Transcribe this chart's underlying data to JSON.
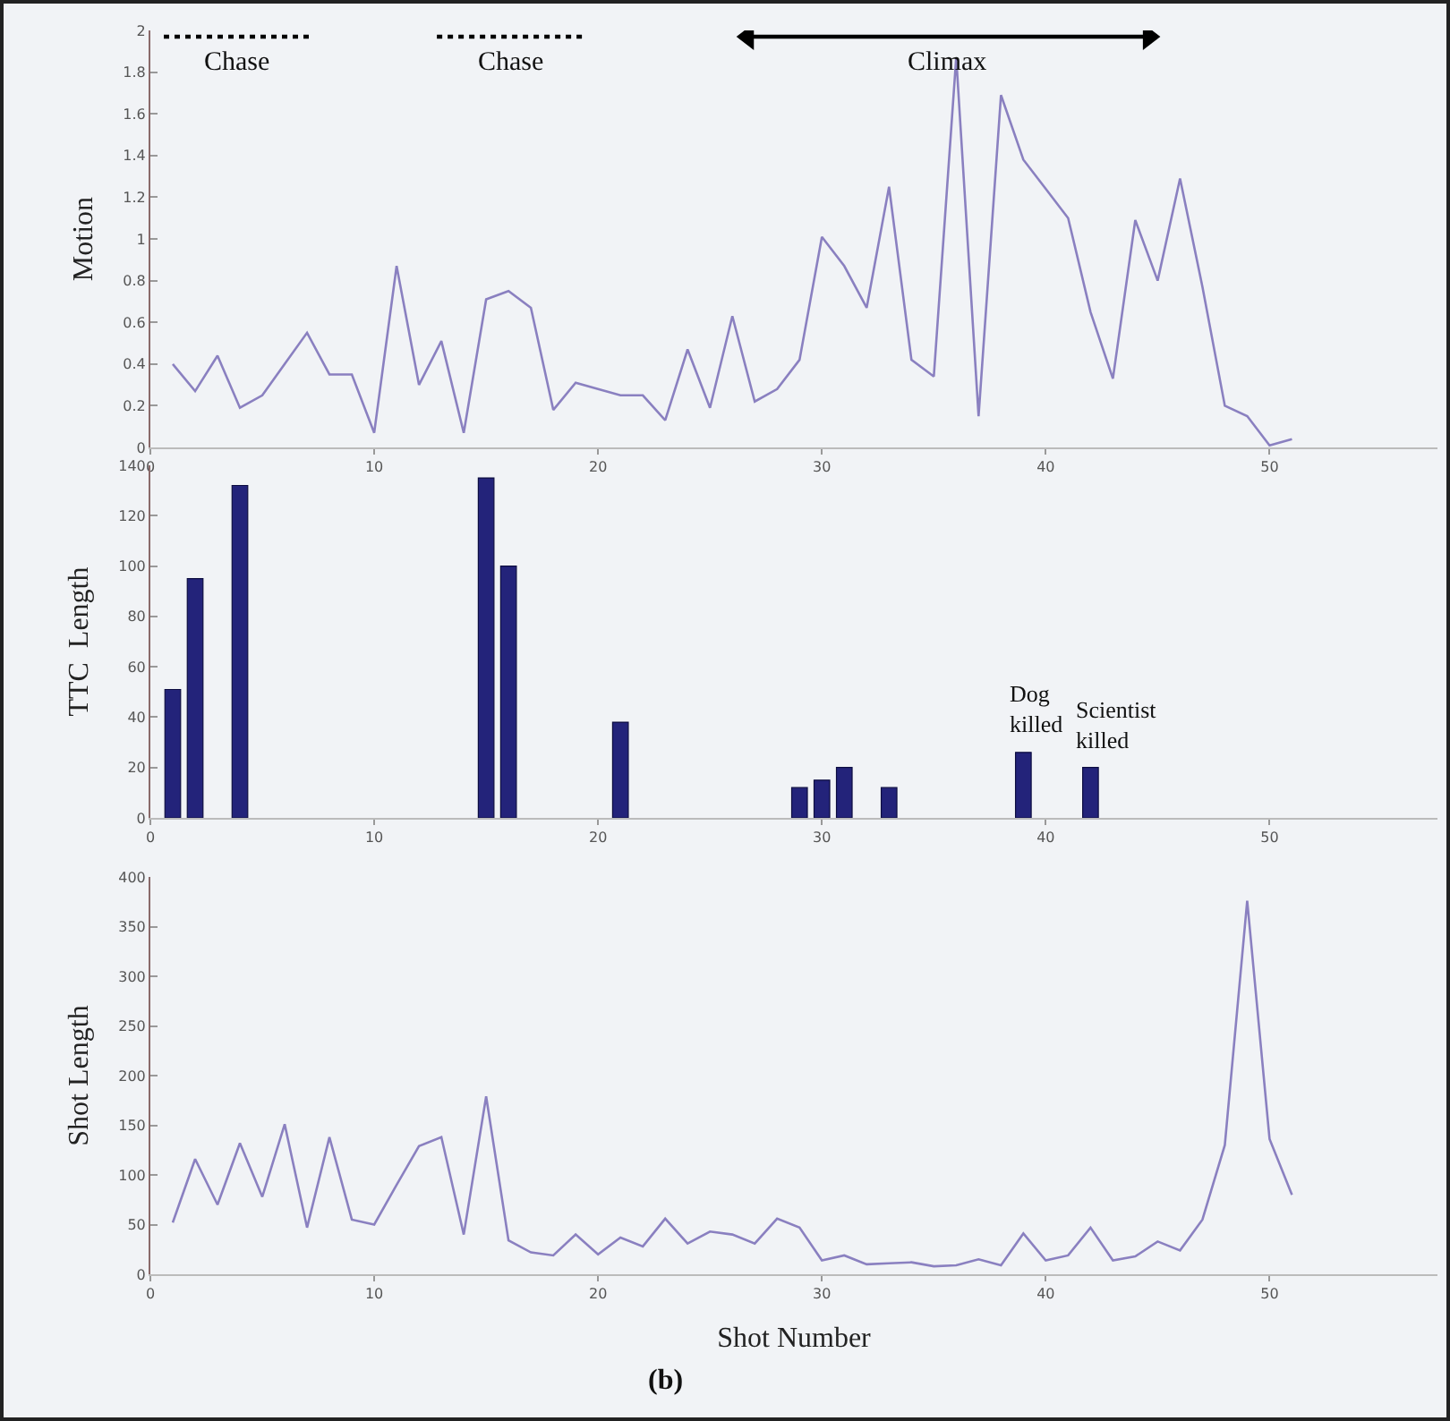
{
  "chart_data": [
    {
      "type": "line",
      "ylabel": "Motion",
      "x": [
        1,
        2,
        3,
        4,
        5,
        6,
        7,
        8,
        9,
        10,
        11,
        12,
        13,
        14,
        15,
        16,
        17,
        18,
        19,
        20,
        21,
        22,
        23,
        24,
        25,
        26,
        27,
        28,
        29,
        30,
        31,
        32,
        33,
        34,
        35,
        36,
        37,
        38,
        39,
        40,
        41,
        42,
        43,
        44,
        45,
        46,
        47,
        48,
        49,
        50,
        51
      ],
      "series": [
        {
          "color": "#8a80c0",
          "values": [
            0.4,
            0.27,
            0.44,
            0.19,
            0.25,
            0.4,
            0.55,
            0.35,
            0.35,
            0.07,
            0.87,
            0.3,
            0.51,
            0.07,
            0.71,
            0.75,
            0.67,
            0.18,
            0.31,
            0.28,
            0.25,
            0.25,
            0.13,
            0.47,
            0.19,
            0.63,
            0.22,
            0.28,
            0.42,
            1.01,
            0.87,
            0.67,
            1.25,
            0.42,
            0.34,
            1.87,
            0.15,
            1.69,
            1.38,
            1.24,
            1.1,
            0.65,
            0.33,
            1.09,
            0.8,
            1.29,
            0.77,
            0.2,
            0.15,
            0.01,
            0.04
          ]
        },
        {
          "color": "#000000",
          "x": [
            0.6,
            7.2
          ],
          "values": [
            1.97,
            1.97
          ],
          "line_style": "dotted"
        },
        {
          "color": "#000000",
          "x": [
            12.8,
            19.5
          ],
          "values": [
            1.97,
            1.97
          ],
          "line_style": "dotted"
        },
        {
          "color": "#000000",
          "x": [
            26.7,
            44.6
          ],
          "values": [
            1.97,
            1.97
          ],
          "marker": "triangle"
        }
      ],
      "xlim": [
        0,
        57.5
      ],
      "xticks": [
        0,
        10,
        20,
        30,
        40,
        50
      ],
      "ylim": [
        0,
        2
      ],
      "yticks": [
        0,
        0.2,
        0.4,
        0.6,
        0.8,
        1,
        1.2,
        1.4,
        1.6,
        1.8,
        2
      ],
      "grid": false,
      "marker": "none",
      "line_style": "solid",
      "annotations": [
        {
          "text": "Chase",
          "x": 3.9,
          "y": 1.97
        },
        {
          "text": "Chase",
          "x": 16.1,
          "y": 1.97
        },
        {
          "text": "Climax",
          "x": 35.6,
          "y": 1.97
        }
      ]
    },
    {
      "type": "bar",
      "ylabel": "TTC  Length",
      "x": [
        1,
        2,
        4,
        15,
        16,
        21,
        29,
        30,
        31,
        33,
        39,
        42
      ],
      "series": [
        {
          "color": "#23237a",
          "values": [
            51,
            95,
            132,
            135,
            100,
            38,
            12,
            15,
            20,
            12,
            26,
            20
          ]
        }
      ],
      "xlim": [
        0,
        57.5
      ],
      "xticks": [
        0,
        10,
        20,
        30,
        40,
        50
      ],
      "ylim": [
        0,
        140
      ],
      "yticks": [
        0,
        20,
        40,
        60,
        80,
        100,
        120,
        140
      ],
      "grid": false,
      "annotations": [
        {
          "text": "Dog\nkilled",
          "x": 39,
          "y": 26
        },
        {
          "text": "Scientist\nkilled",
          "x": 42,
          "y": 20
        }
      ]
    },
    {
      "type": "line",
      "ylabel": "Shot Length",
      "xlabel": "Shot Number",
      "x": [
        1,
        2,
        3,
        4,
        5,
        6,
        7,
        8,
        9,
        10,
        11,
        12,
        13,
        14,
        15,
        16,
        17,
        18,
        19,
        20,
        21,
        22,
        23,
        24,
        25,
        26,
        27,
        28,
        29,
        30,
        31,
        32,
        33,
        34,
        35,
        36,
        37,
        38,
        39,
        40,
        41,
        42,
        43,
        44,
        45,
        46,
        47,
        48,
        49,
        50,
        51
      ],
      "series": [
        {
          "color": "#8a80c0",
          "values": [
            52,
            116,
            70,
            132,
            78,
            151,
            47,
            138,
            55,
            50,
            90,
            129,
            138,
            40,
            179,
            34,
            22,
            19,
            40,
            20,
            37,
            28,
            56,
            31,
            43,
            40,
            31,
            56,
            47,
            14,
            19,
            10,
            11,
            12,
            8,
            9,
            15,
            9,
            41,
            14,
            19,
            47,
            14,
            18,
            33,
            24,
            55,
            130,
            376,
            136,
            80
          ]
        }
      ],
      "xlim": [
        0,
        57.5
      ],
      "xticks": [
        0,
        10,
        20,
        30,
        40,
        50
      ],
      "ylim": [
        0,
        400
      ],
      "yticks": [
        0,
        50,
        100,
        150,
        200,
        250,
        300,
        350,
        400
      ],
      "grid": false,
      "marker": "none",
      "line_style": "solid",
      "annotations": [
        "(b)"
      ]
    }
  ]
}
